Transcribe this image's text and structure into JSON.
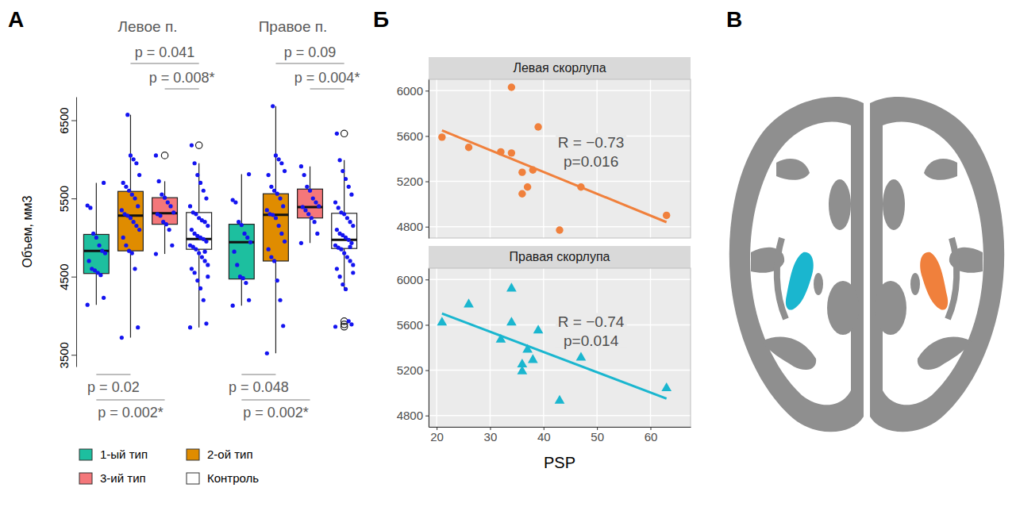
{
  "chart_data": [
    {
      "type": "box",
      "panel": "А",
      "y_label": "Объем, мм3",
      "categories": [
        "Левое п.",
        "Правое п."
      ],
      "ylim": [
        3350,
        6800
      ],
      "yticks": [
        3500,
        4500,
        5500,
        6500
      ],
      "grid": false,
      "legend": "bottom",
      "series": [
        {
          "name": "1-ый тип",
          "color": "#1dbf9f",
          "boxes": [
            {
              "min": 4140,
              "q1": 4540,
              "median": 4830,
              "q3": 5040,
              "max": 5700,
              "outliers": [],
              "points": [
                4140,
                4230,
                4520,
                4550,
                4580,
                4600,
                4700,
                4800,
                4830,
                4900,
                5000,
                5050,
                5380,
                5410,
                5700
              ]
            },
            {
              "min": 4130,
              "q1": 4470,
              "median": 4940,
              "q3": 5170,
              "max": 5810,
              "outliers": [],
              "points": [
                4130,
                4200,
                4420,
                4480,
                4500,
                4650,
                4820,
                4940,
                5000,
                5050,
                5160,
                5200,
                5450,
                5480,
                5810
              ]
            }
          ]
        },
        {
          "name": "2-ой тип",
          "color": "#e08c00",
          "boxes": [
            {
              "min": 3720,
              "q1": 4830,
              "median": 5280,
              "q3": 5590,
              "max": 6570,
              "outliers": [],
              "points": [
                3720,
                3850,
                4600,
                4800,
                4830,
                4900,
                5000,
                5100,
                5150,
                5200,
                5250,
                5280,
                5300,
                5350,
                5400,
                5500,
                5550,
                5600,
                5650,
                5700,
                5800,
                5950,
                6000,
                6050,
                6570
              ]
            },
            {
              "min": 3520,
              "q1": 4700,
              "median": 5290,
              "q3": 5560,
              "max": 6680,
              "outliers": [],
              "points": [
                3520,
                3870,
                4200,
                4450,
                4700,
                4750,
                4850,
                4950,
                5050,
                5150,
                5250,
                5290,
                5300,
                5350,
                5400,
                5500,
                5560,
                5600,
                5650,
                5800,
                5850,
                5950,
                6000,
                6050,
                6680
              ]
            }
          ]
        },
        {
          "name": "3-ий тип",
          "color": "#f4777a",
          "boxes": [
            {
              "min": 4790,
              "q1": 5170,
              "median": 5310,
              "q3": 5510,
              "max": 5720,
              "outliers": [
                6050
              ],
              "points": [
                4790,
                4900,
                5100,
                5170,
                5200,
                5280,
                5300,
                5320,
                5400,
                5450,
                5510,
                5550,
                5720,
                6050
              ]
            },
            {
              "min": 4930,
              "q1": 5250,
              "median": 5390,
              "q3": 5620,
              "max": 5910,
              "outliers": [],
              "points": [
                4930,
                5050,
                5200,
                5250,
                5300,
                5350,
                5390,
                5400,
                5450,
                5500,
                5600,
                5650,
                5800,
                5910
              ]
            }
          ]
        },
        {
          "name": "Контроль",
          "color": "#ffffff",
          "boxes": [
            {
              "min": 3850,
              "q1": 4850,
              "median": 4980,
              "q3": 5320,
              "max": 5950,
              "outliers": [
                6180
              ],
              "points": [
                3850,
                3900,
                4200,
                4350,
                4450,
                4550,
                4600,
                4650,
                4700,
                4750,
                4800,
                4850,
                4880,
                4900,
                4950,
                4980,
                5000,
                5020,
                5050,
                5100,
                5150,
                5200,
                5220,
                5250,
                5300,
                5320,
                5400,
                5500,
                5600,
                5700,
                5800,
                5950,
                6180,
                4500,
                4820
              ]
            },
            {
              "min": 4340,
              "q1": 4860,
              "median": 4970,
              "q3": 5310,
              "max": 5990,
              "outliers": [
                6330,
                3930,
                3890,
                3860
              ],
              "points": [
                3860,
                3890,
                3930,
                4340,
                4400,
                4500,
                4600,
                4650,
                4700,
                4750,
                4800,
                4850,
                4870,
                4900,
                4930,
                4970,
                5000,
                5030,
                5050,
                5100,
                5150,
                5200,
                5250,
                5300,
                5320,
                5380,
                5450,
                5550,
                5650,
                5750,
                5850,
                5990,
                6330,
                4550,
                4880
              ]
            }
          ]
        }
      ],
      "comparisons": [
        {
          "category": "Левое п.",
          "from": "2-ой тип",
          "to": "Контроль",
          "label": "p = 0.041"
        },
        {
          "category": "Левое п.",
          "from": "3-ий тип",
          "to": "Контроль",
          "label": "p = 0.008*"
        },
        {
          "category": "Левое п.",
          "from": "1-ый тип",
          "to": "2-ой тип",
          "label": "p = 0.02"
        },
        {
          "category": "Левое п.",
          "from": "1-ый тип",
          "to": "3-ий тип",
          "label": "p = 0.002*"
        },
        {
          "category": "Правое п.",
          "from": "2-ой тип",
          "to": "Контроль",
          "label": "p = 0.09"
        },
        {
          "category": "Правое п.",
          "from": "3-ий тип",
          "to": "Контроль",
          "label": "p = 0.004*"
        },
        {
          "category": "Правое п.",
          "from": "1-ый тип",
          "to": "2-ой тип",
          "label": "p = 0.048"
        },
        {
          "category": "Правое п.",
          "from": "1-ый тип",
          "to": "3-ий тип",
          "label": "p = 0.002*"
        }
      ]
    },
    {
      "type": "scatter",
      "panel": "Б",
      "x_label": "PSP",
      "xlim": [
        18.5,
        67.5
      ],
      "xticks": [
        20,
        30,
        40,
        50,
        60
      ],
      "ylim": [
        4700,
        6100
      ],
      "yticks": [
        4800,
        5200,
        5600,
        6000
      ],
      "grid": true,
      "series": [
        {
          "name": "Левая скорлупа",
          "color": "#f0803c",
          "marker": "circle",
          "x": [
            21,
            26,
            32,
            34,
            34,
            36,
            36,
            37,
            38,
            39,
            43,
            47,
            63
          ],
          "values": [
            5590,
            5500,
            5460,
            6030,
            5450,
            5280,
            5090,
            5150,
            5300,
            5680,
            4770,
            5150,
            4900
          ],
          "fit": {
            "x": [
              21,
              63
            ],
            "values": [
              5650,
              4840
            ]
          },
          "annotation": [
            "R = −0.73",
            "p=0.016"
          ]
        },
        {
          "name": "Правая скорлупа",
          "color": "#1ab6cf",
          "marker": "triangle",
          "x": [
            21,
            26,
            32,
            34,
            34,
            36,
            36,
            37,
            38,
            39,
            43,
            47,
            63
          ],
          "values": [
            5620,
            5780,
            5470,
            5920,
            5620,
            5250,
            5190,
            5380,
            5290,
            5550,
            4930,
            5310,
            5040
          ],
          "fit": {
            "x": [
              21,
              63
            ],
            "values": [
              5700,
              4950
            ]
          },
          "annotation": [
            "R = −0.74",
            "p=0.014"
          ]
        }
      ]
    }
  ],
  "diagram": {
    "panel": "В"
  }
}
